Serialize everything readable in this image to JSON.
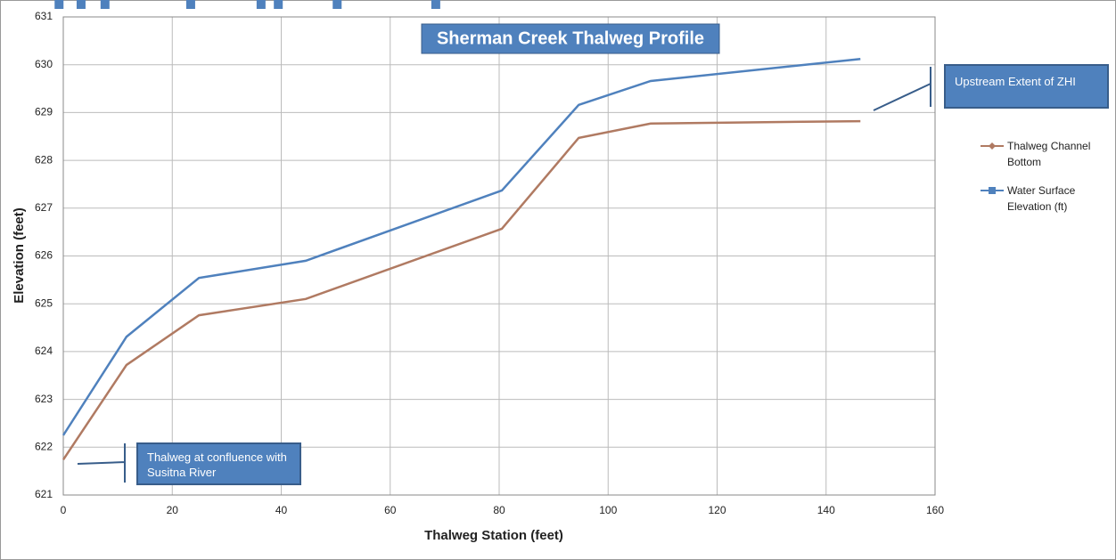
{
  "chart_data": {
    "type": "line",
    "title": "Sherman Creek Thalweg Profile",
    "x_label": "Thalweg Station (feet)",
    "y_label": "Elevation (feet)",
    "xlim": [
      0,
      160
    ],
    "xticks": [
      0,
      20,
      40,
      60,
      80,
      100,
      120,
      140,
      160
    ],
    "ylim": [
      621,
      631
    ],
    "yticks": [
      621,
      622,
      623,
      624,
      625,
      626,
      627,
      628,
      629,
      630,
      631
    ],
    "grid": true,
    "legend": "right",
    "series": [
      {
        "name": "Thalweg Channel Bottom",
        "color": "#b07a62",
        "marker": "diamond",
        "x": [
          0,
          11.6,
          24.9,
          44.5,
          80.5,
          94.6,
          107.8,
          146.3
        ],
        "values": [
          621.74,
          623.72,
          624.76,
          625.1,
          626.57,
          628.47,
          628.77,
          628.82
        ]
      },
      {
        "name": "Water Surface Elevation (ft)",
        "color": "#4f81bd",
        "marker": "square",
        "x": [
          0,
          11.6,
          24.9,
          44.5,
          80.5,
          94.6,
          107.8,
          146.3
        ],
        "values": [
          622.25,
          624.31,
          625.54,
          625.9,
          627.37,
          629.16,
          629.66,
          630.12
        ]
      }
    ],
    "annotations": [
      "Upstream Extent of  ZHI",
      "Thalweg at confluence with Susitna River"
    ]
  }
}
